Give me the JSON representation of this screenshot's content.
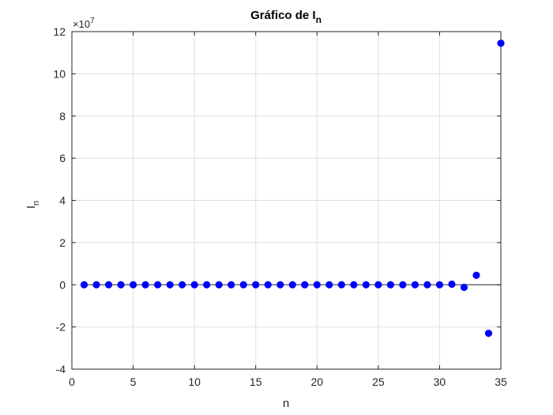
{
  "chart_data": {
    "type": "scatter",
    "title": {
      "main": "Gráfico de I",
      "subscript": "n"
    },
    "xlabel": "n",
    "ylabel": {
      "main": "I",
      "subscript": "n"
    },
    "y_exponent": {
      "prefix": "×10",
      "power": "7"
    },
    "xlim": [
      0,
      35
    ],
    "ylim": [
      -4,
      12
    ],
    "xticks": [
      0,
      5,
      10,
      15,
      20,
      25,
      30,
      35
    ],
    "yticks": [
      -4,
      -2,
      0,
      2,
      4,
      6,
      8,
      10,
      12
    ],
    "grid": true,
    "reference_line_y": 0,
    "marker_color": "#0000ff",
    "series": [
      {
        "x": [
          1,
          2,
          3,
          4,
          5,
          6,
          7,
          8,
          9,
          10,
          11,
          12,
          13,
          14,
          15,
          16,
          17,
          18,
          19,
          20,
          21,
          22,
          23,
          24,
          25,
          26,
          27,
          28,
          29,
          30,
          31,
          32,
          33,
          34,
          35
        ],
        "y": [
          0,
          0,
          0,
          0,
          0,
          0,
          0,
          0,
          0,
          0,
          0,
          0,
          0,
          0,
          0,
          0,
          0,
          0,
          0,
          0,
          0,
          0,
          0,
          0,
          0,
          0,
          0,
          0,
          0,
          0,
          0.03,
          -0.12,
          0.45,
          -2.3,
          11.45
        ]
      }
    ]
  }
}
